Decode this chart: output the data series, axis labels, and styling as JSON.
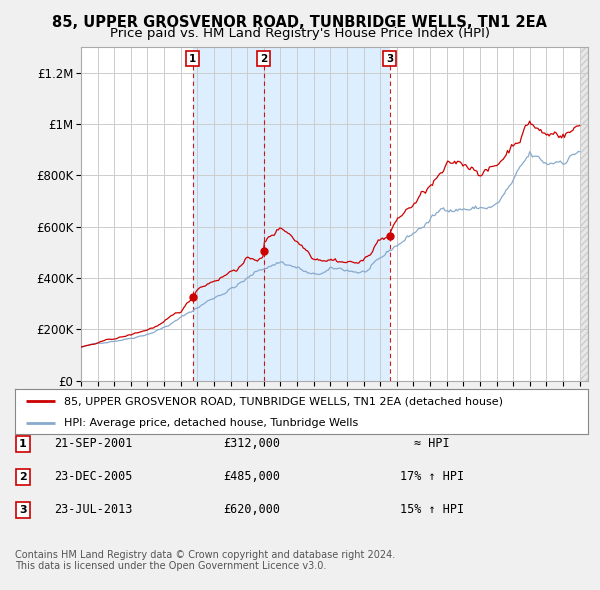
{
  "title": "85, UPPER GROSVENOR ROAD, TUNBRIDGE WELLS, TN1 2EA",
  "subtitle": "Price paid vs. HM Land Registry's House Price Index (HPI)",
  "ylim": [
    0,
    1300000
  ],
  "yticks": [
    0,
    200000,
    400000,
    600000,
    800000,
    1000000,
    1200000
  ],
  "ytick_labels": [
    "£0",
    "£200K",
    "£400K",
    "£600K",
    "£800K",
    "£1M",
    "£1.2M"
  ],
  "background_color": "#f0f0f0",
  "plot_bg_color": "#ffffff",
  "shade_color": "#ddeeff",
  "grid_color": "#cccccc",
  "red_line_color": "#cc0000",
  "blue_line_color": "#88aacc",
  "sale_year_nums": [
    2001.72,
    2005.98,
    2013.56
  ],
  "sale_prices": [
    312000,
    485000,
    620000
  ],
  "sale_labels": [
    "1",
    "2",
    "3"
  ],
  "legend_entries": [
    "85, UPPER GROSVENOR ROAD, TUNBRIDGE WELLS, TN1 2EA (detached house)",
    "HPI: Average price, detached house, Tunbridge Wells"
  ],
  "table_data": [
    [
      "1",
      "21-SEP-2001",
      "£312,000",
      "≈ HPI"
    ],
    [
      "2",
      "23-DEC-2005",
      "£485,000",
      "17% ↑ HPI"
    ],
    [
      "3",
      "23-JUL-2013",
      "£620,000",
      "15% ↑ HPI"
    ]
  ],
  "footer_text": "Contains HM Land Registry data © Crown copyright and database right 2024.\nThis data is licensed under the Open Government Licence v3.0."
}
